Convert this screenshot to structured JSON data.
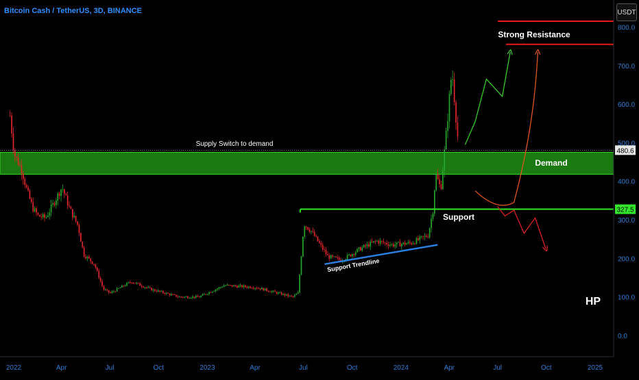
{
  "chart_title": "Bitcoin Cash / TetherUS, 3D, BINANCE",
  "currency_button": "USDT",
  "colors": {
    "up": "#26a62b",
    "down": "#e0262b",
    "axis_text": "#2f7dd6",
    "demand_fill": "#1f8f14",
    "support": "#33e62b",
    "resistance": "#e61a1a",
    "trendline": "#2a7fe0",
    "green_arrow": "#38c92a",
    "orange_arrow": "#e0561f",
    "red_arrow": "#d92020"
  },
  "chart_data": {
    "type": "candlestick",
    "x_tick_labels": [
      "2022",
      "Apr",
      "Jul",
      "Oct",
      "2023",
      "Apr",
      "Jul",
      "Oct",
      "2024",
      "Apr",
      "Jul",
      "Oct",
      "2025"
    ],
    "y_ticks": [
      0.0,
      100.0,
      200.0,
      300.0,
      400.0,
      500.0,
      600.0,
      700.0,
      800.0
    ],
    "y_tick_labels": [
      "0.0",
      "100.0",
      "200.0",
      "300.0",
      "400.0",
      "500.0",
      "600.0",
      "700.0",
      "800.0"
    ],
    "ylim": [
      -55,
      870
    ],
    "grid": false,
    "last_price": "480.6",
    "last_price_value": 480.6,
    "support_price": "327.5",
    "support_price_value": 327.5,
    "price_path": [
      [
        "2021-12-24",
        570
      ],
      [
        "2022-01-01",
        470
      ],
      [
        "2022-01-15",
        430
      ],
      [
        "2022-01-25",
        375
      ],
      [
        "2022-02-05",
        330
      ],
      [
        "2022-02-15",
        310
      ],
      [
        "2022-03-01",
        305
      ],
      [
        "2022-03-15",
        340
      ],
      [
        "2022-04-01",
        385
      ],
      [
        "2022-04-15",
        330
      ],
      [
        "2022-05-01",
        285
      ],
      [
        "2022-05-12",
        210
      ],
      [
        "2022-06-01",
        185
      ],
      [
        "2022-06-18",
        120
      ],
      [
        "2022-07-01",
        110
      ],
      [
        "2022-08-10",
        140
      ],
      [
        "2022-09-15",
        120
      ],
      [
        "2022-11-08",
        100
      ],
      [
        "2022-12-15",
        100
      ],
      [
        "2023-02-01",
        130
      ],
      [
        "2023-04-01",
        125
      ],
      [
        "2023-06-10",
        100
      ],
      [
        "2023-06-20",
        110
      ],
      [
        "2023-07-01",
        290
      ],
      [
        "2023-07-15",
        270
      ],
      [
        "2023-08-15",
        205
      ],
      [
        "2023-09-10",
        195
      ],
      [
        "2023-10-15",
        225
      ],
      [
        "2023-11-15",
        245
      ],
      [
        "2023-12-15",
        235
      ],
      [
        "2024-01-20",
        240
      ],
      [
        "2024-02-20",
        260
      ],
      [
        "2024-03-01",
        330
      ],
      [
        "2024-03-05",
        420
      ],
      [
        "2024-03-15",
        380
      ],
      [
        "2024-03-25",
        520
      ],
      [
        "2024-04-05",
        690
      ],
      [
        "2024-04-18",
        480
      ]
    ],
    "zones": {
      "demand": [
        418,
        475
      ],
      "support": 327.5,
      "strong_resistance": [
        755,
        815
      ]
    },
    "support_trendline": [
      [
        "2023-08-10",
        185
      ],
      [
        "2024-03-10",
        235
      ]
    ],
    "projections": {
      "green": [
        [
          "2024-05-01",
          495
        ],
        [
          "2024-05-20",
          555
        ],
        [
          "2024-06-10",
          665
        ],
        [
          "2024-07-10",
          620
        ],
        [
          "2024-07-25",
          735
        ]
      ],
      "orange": [
        [
          "2024-05-20",
          375
        ],
        [
          "2024-07-01",
          335
        ],
        [
          "2024-08-01",
          345
        ],
        [
          "2024-08-25",
          470
        ],
        [
          "2024-09-15",
          735
        ]
      ],
      "red": [
        [
          "2024-07-01",
          335
        ],
        [
          "2024-07-15",
          310
        ],
        [
          "2024-08-01",
          325
        ],
        [
          "2024-08-20",
          265
        ],
        [
          "2024-09-10",
          305
        ],
        [
          "2024-09-30",
          225
        ]
      ]
    },
    "annotations": {
      "supply_switch": "Supply Switch to demand",
      "demand": "Demand",
      "support": "Support",
      "strong_resistance": "Strong Resistance",
      "support_trendline": "Support Trendline",
      "author": "HP"
    }
  }
}
